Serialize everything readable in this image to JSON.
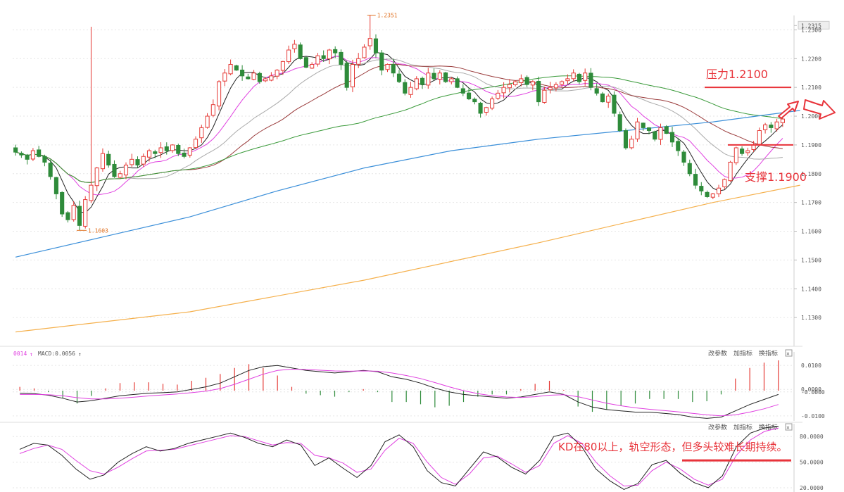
{
  "chart_data": [
    {
      "type": "candlestick",
      "panel": "price",
      "ylim": [
        1.12,
        1.235
      ],
      "y_ticks": [
        "1.2315",
        "1.2300",
        "1.2200",
        "1.2100",
        "1.2000",
        "1.1900",
        "1.1800",
        "1.1700",
        "1.1600",
        "1.1500",
        "1.1400",
        "1.1300"
      ],
      "marked_low": "1.1603",
      "marked_high": "1.2351",
      "close_series": [
        1.1875,
        1.1865,
        1.185,
        1.188,
        1.186,
        1.184,
        1.179,
        1.173,
        1.166,
        1.164,
        1.169,
        1.162,
        1.171,
        1.176,
        1.182,
        1.187,
        1.183,
        1.179,
        1.18,
        1.183,
        1.185,
        1.183,
        1.186,
        1.188,
        1.187,
        1.189,
        1.188,
        1.19,
        1.187,
        1.186,
        1.189,
        1.192,
        1.196,
        1.2,
        1.204,
        1.212,
        1.215,
        1.218,
        1.216,
        1.214,
        1.213,
        1.215,
        1.212,
        1.213,
        1.214,
        1.216,
        1.219,
        1.223,
        1.225,
        1.22,
        1.217,
        1.218,
        1.221,
        1.22,
        1.223,
        1.222,
        1.218,
        1.21,
        1.218,
        1.22,
        1.224,
        1.227,
        1.222,
        1.216,
        1.218,
        1.215,
        1.212,
        1.208,
        1.21,
        1.213,
        1.211,
        1.215,
        1.213,
        1.215,
        1.212,
        1.213,
        1.21,
        1.208,
        1.206,
        1.205,
        1.201,
        1.203,
        1.206,
        1.208,
        1.21,
        1.211,
        1.212,
        1.213,
        1.211,
        1.212,
        1.205,
        1.209,
        1.21,
        1.211,
        1.212,
        1.213,
        1.215,
        1.212,
        1.215,
        1.21,
        1.208,
        1.205,
        1.207,
        1.201,
        1.195,
        1.189,
        1.192,
        1.198,
        1.196,
        1.195,
        1.192,
        1.196,
        1.194,
        1.191,
        1.188,
        1.184,
        1.18,
        1.176,
        1.174,
        1.172,
        1.173,
        1.175,
        1.178,
        1.184,
        1.189,
        1.187,
        1.188,
        1.19,
        1.195,
        1.197,
        1.196,
        1.198,
        1.199
      ],
      "moving_averages": [
        {
          "color": "#222222",
          "period": 5
        },
        {
          "color": "#e040e0",
          "period": 10
        },
        {
          "color": "#aaaaaa",
          "period": 20
        },
        {
          "color": "#9a3b3b",
          "period": 30
        },
        {
          "color": "#3a9a3a",
          "period": 60
        }
      ],
      "long_ma_blue": [
        [
          0,
          1.151
        ],
        [
          15,
          1.158
        ],
        [
          30,
          1.165
        ],
        [
          45,
          1.174
        ],
        [
          60,
          1.182
        ],
        [
          75,
          1.188
        ],
        [
          90,
          1.192
        ],
        [
          105,
          1.195
        ],
        [
          120,
          1.198
        ],
        [
          135,
          1.202
        ]
      ],
      "long_ma_orange": [
        [
          0,
          1.125
        ],
        [
          30,
          1.132
        ],
        [
          60,
          1.143
        ],
        [
          90,
          1.156
        ],
        [
          120,
          1.17
        ],
        [
          135,
          1.176
        ]
      ],
      "annotations": {
        "resistance": "压力1.2100",
        "support": "支撑1.1900",
        "resistance_level": 1.21,
        "support_level": 1.19
      }
    },
    {
      "type": "bar",
      "panel": "macd",
      "header": "0014",
      "label": "MACD:0.0056",
      "ylim": [
        -0.012,
        0.012
      ],
      "y_ticks": [
        "0.0100",
        "0.0000",
        "-0.0000",
        "-0.0100"
      ],
      "tools": [
        "改参数",
        "加指标",
        "换指标"
      ],
      "dif": [
        -0.001,
        -0.0012,
        -0.0018,
        -0.003,
        -0.0045,
        -0.004,
        -0.003,
        -0.002,
        -0.0015,
        -0.001,
        -0.0008,
        -0.0005,
        0.0005,
        0.0015,
        0.003,
        0.0055,
        0.008,
        0.0095,
        0.01,
        0.009,
        0.008,
        0.0075,
        0.007,
        0.0075,
        0.008,
        0.0075,
        0.0055,
        0.0045,
        0.003,
        0.001,
        -0.0005,
        -0.0015,
        -0.002,
        -0.0025,
        -0.003,
        -0.0025,
        -0.0015,
        -0.0005,
        -0.0015,
        -0.0045,
        -0.0065,
        -0.0075,
        -0.008,
        -0.0085,
        -0.0085,
        -0.009,
        -0.0095,
        -0.0105,
        -0.011,
        -0.0105,
        -0.008,
        -0.0055,
        -0.0035,
        -0.0015
      ],
      "dea": [
        -0.0015,
        -0.0015,
        -0.0016,
        -0.002,
        -0.0028,
        -0.0033,
        -0.0033,
        -0.003,
        -0.0026,
        -0.0021,
        -0.0017,
        -0.0013,
        -0.0008,
        -0.0002,
        0.0008,
        0.0025,
        0.0045,
        0.0065,
        0.008,
        0.0085,
        0.0084,
        0.0081,
        0.0078,
        0.0077,
        0.0078,
        0.0077,
        0.007,
        0.006,
        0.0048,
        0.0032,
        0.0015,
        0.0,
        -0.0012,
        -0.002,
        -0.0025,
        -0.0027,
        -0.0024,
        -0.0018,
        -0.0016,
        -0.0024,
        -0.0037,
        -0.005,
        -0.006,
        -0.0068,
        -0.0074,
        -0.0079,
        -0.0084,
        -0.009,
        -0.0096,
        -0.01,
        -0.0096,
        -0.0085,
        -0.0072,
        -0.0055
      ],
      "hist": [
        0.0005,
        0.0003,
        -0.0002,
        -0.001,
        -0.0017,
        -0.0007,
        0.0003,
        0.001,
        0.0011,
        0.0011,
        0.0009,
        0.0008,
        0.0013,
        0.0017,
        0.0022,
        0.003,
        0.0035,
        0.003,
        0.002,
        0.0005,
        -0.0004,
        -0.0006,
        -0.0008,
        -0.0002,
        0.0002,
        -0.0002,
        -0.0015,
        -0.0015,
        -0.0018,
        -0.0022,
        -0.002,
        -0.0015,
        -0.0008,
        -0.0005,
        -0.0005,
        0.0002,
        0.0009,
        0.0013,
        0.0001,
        -0.0021,
        -0.0028,
        -0.0025,
        -0.002,
        -0.0017,
        -0.0011,
        -0.0011,
        -0.0011,
        -0.0015,
        -0.0014,
        -0.0005,
        0.0016,
        0.003,
        0.0037,
        0.004
      ]
    },
    {
      "type": "line",
      "panel": "kd",
      "ylim": [
        15,
        95
      ],
      "y_ticks": [
        "80.0000",
        "50.0000",
        "20.0000"
      ],
      "tools": [
        "改参数",
        "加指标",
        "换指标"
      ],
      "annotation": "KD在80以上，轨空形态，但多头较难长期持续。",
      "k": [
        65,
        72,
        70,
        58,
        42,
        30,
        35,
        50,
        60,
        68,
        63,
        66,
        72,
        76,
        80,
        84,
        79,
        72,
        68,
        76,
        70,
        46,
        55,
        43,
        32,
        46,
        74,
        82,
        68,
        40,
        26,
        22,
        42,
        62,
        56,
        44,
        36,
        52,
        80,
        84,
        68,
        42,
        28,
        18,
        25,
        47,
        52,
        37,
        26,
        20,
        34,
        68,
        84,
        90,
        92
      ],
      "d": [
        60,
        66,
        70,
        65,
        52,
        40,
        36,
        44,
        54,
        63,
        64,
        65,
        69,
        73,
        77,
        81,
        80,
        75,
        70,
        73,
        72,
        58,
        55,
        49,
        38,
        42,
        64,
        78,
        72,
        50,
        32,
        24,
        36,
        55,
        57,
        48,
        38,
        46,
        72,
        81,
        72,
        50,
        34,
        22,
        23,
        40,
        50,
        42,
        30,
        23,
        30,
        58,
        76,
        86,
        90
      ]
    }
  ]
}
